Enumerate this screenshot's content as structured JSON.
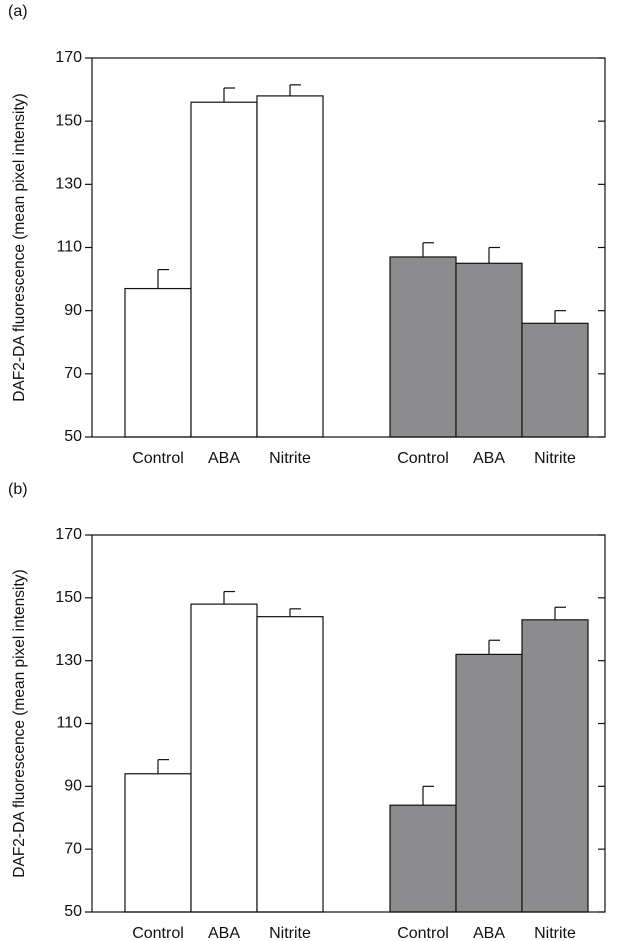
{
  "chart_data": [
    {
      "type": "bar",
      "label": "(a)",
      "y_label": "DAF2-DA fluorescence (mean pixel intensity)",
      "categories": [
        "Control",
        "ABA",
        "Nitrite"
      ],
      "series": [
        {
          "color": "#ffffff",
          "values": [
            97,
            156,
            158
          ],
          "errors": [
            6,
            4.5,
            3.5
          ]
        },
        {
          "color": "#8c8c8e",
          "values": [
            107,
            105,
            86
          ],
          "errors": [
            4.5,
            5,
            4
          ]
        }
      ],
      "ylim": [
        50,
        170
      ],
      "yticks": [
        50,
        70,
        90,
        110,
        130,
        150,
        170
      ]
    },
    {
      "type": "bar",
      "label": "(b)",
      "y_label": "DAF2-DA fluorescence (mean pixel intensity)",
      "categories": [
        "Control",
        "ABA",
        "Nitrite"
      ],
      "series": [
        {
          "color": "#ffffff",
          "values": [
            94,
            148,
            144
          ],
          "errors": [
            4.5,
            4,
            2.5
          ]
        },
        {
          "color": "#8c8c8e",
          "values": [
            84,
            132,
            143
          ],
          "errors": [
            6,
            4.5,
            4
          ]
        }
      ],
      "ylim": [
        50,
        170
      ],
      "yticks": [
        50,
        70,
        90,
        110,
        130,
        150,
        170
      ]
    }
  ]
}
